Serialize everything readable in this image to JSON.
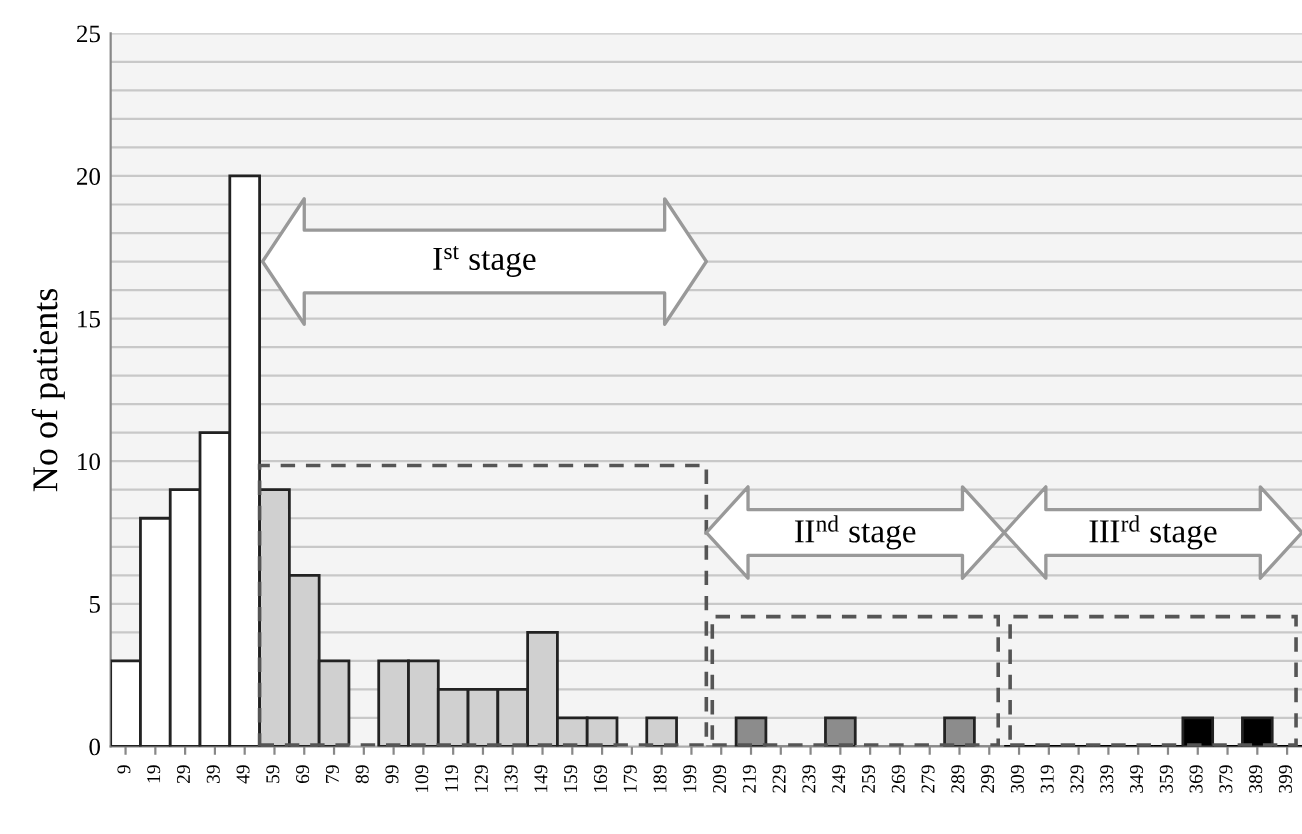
{
  "chart_data": {
    "type": "bar",
    "ylabel": "No of patients",
    "categories": [
      "9",
      "19",
      "29",
      "39",
      "49",
      "59",
      "69",
      "79",
      "89",
      "99",
      "109",
      "119",
      "129",
      "139",
      "149",
      "159",
      "169",
      "179",
      "189",
      "199",
      "209",
      "219",
      "229",
      "239",
      "249",
      "259",
      "269",
      "279",
      "289",
      "299",
      "309",
      "319",
      "329",
      "339",
      "349",
      "359",
      "369",
      "379",
      "389",
      "399"
    ],
    "values": [
      3,
      8,
      9,
      11,
      20,
      9,
      6,
      3,
      0,
      3,
      3,
      2,
      2,
      2,
      4,
      1,
      1,
      0,
      1,
      0,
      0,
      1,
      0,
      0,
      1,
      0,
      0,
      0,
      1,
      0,
      0,
      0,
      0,
      0,
      0,
      0,
      1,
      0,
      1,
      0
    ],
    "colors": [
      "#ffffff",
      "#ffffff",
      "#ffffff",
      "#ffffff",
      "#ffffff",
      "#d0d0d0",
      "#d0d0d0",
      "#d0d0d0",
      "#d0d0d0",
      "#d0d0d0",
      "#d0d0d0",
      "#d0d0d0",
      "#d0d0d0",
      "#d0d0d0",
      "#d0d0d0",
      "#d0d0d0",
      "#d0d0d0",
      "#d0d0d0",
      "#d0d0d0",
      "#d0d0d0",
      "#8c8c8c",
      "#8c8c8c",
      "#8c8c8c",
      "#8c8c8c",
      "#8c8c8c",
      "#8c8c8c",
      "#8c8c8c",
      "#8c8c8c",
      "#8c8c8c",
      "#8c8c8c",
      "#000000",
      "#000000",
      "#000000",
      "#000000",
      "#000000",
      "#000000",
      "#000000",
      "#000000",
      "#000000",
      "#000000"
    ],
    "ylim": [
      0,
      25
    ],
    "yticks": [
      0,
      {
        "value": 1,
        "label": null
      },
      {
        "value": 2,
        "label": null
      },
      {
        "value": 3,
        "label": null
      },
      {
        "value": 4,
        "label": null
      },
      5,
      {
        "value": 6,
        "label": null
      },
      {
        "value": 7,
        "label": null
      },
      {
        "value": 8,
        "label": null
      },
      {
        "value": 9,
        "label": null
      },
      10,
      {
        "value": 11,
        "label": null
      },
      {
        "value": 12,
        "label": null
      },
      {
        "value": 13,
        "label": null
      },
      {
        "value": 14,
        "label": null
      },
      15,
      {
        "value": 16,
        "label": null
      },
      {
        "value": 17,
        "label": null
      },
      {
        "value": 18,
        "label": null
      },
      {
        "value": 19,
        "label": null
      },
      20,
      {
        "value": 21,
        "label": null
      },
      {
        "value": 22,
        "label": null
      },
      {
        "value": 23,
        "label": null
      },
      {
        "value": 24,
        "label": null
      },
      25
    ],
    "grid": "y",
    "annotations": [
      "I$^{st}$ stage",
      "II$^{nd}$ stage",
      "III$^{rd}$ stage"
    ]
  }
}
